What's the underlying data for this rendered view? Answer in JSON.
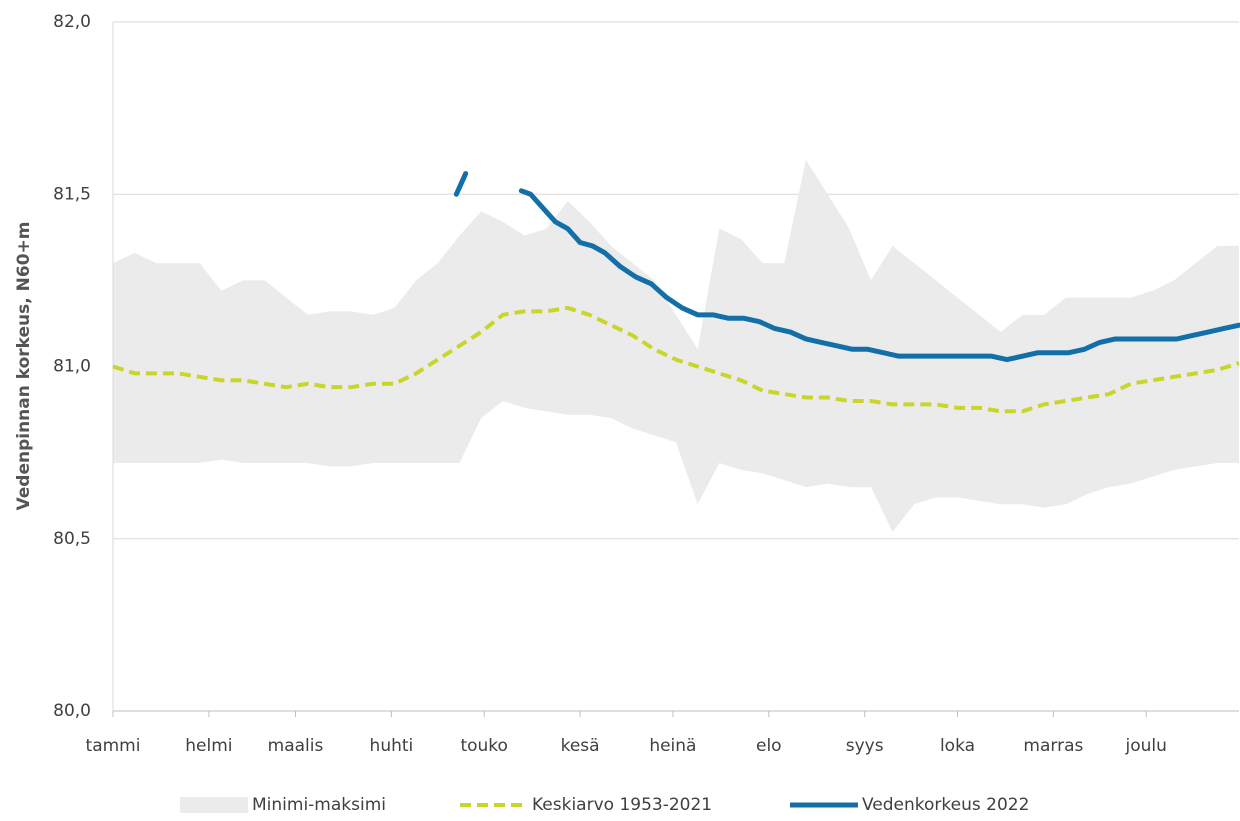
{
  "chart_data": {
    "type": "line",
    "y_label": "Vedenpinnan korkeus, N60+m",
    "x": [
      1,
      8,
      15,
      22,
      29,
      36,
      43,
      50,
      57,
      64,
      71,
      78,
      85,
      92,
      99,
      106,
      113,
      120,
      127,
      134,
      141,
      148,
      155,
      162,
      169,
      176,
      183,
      190,
      197,
      204,
      211,
      218,
      225,
      232,
      239,
      246,
      253,
      260,
      267,
      274,
      281,
      288,
      295,
      302,
      309,
      316,
      323,
      330,
      337,
      344,
      351,
      358,
      365
    ],
    "xlim": [
      1,
      365
    ],
    "xticks": [
      {
        "value": 1,
        "label": "tammi"
      },
      {
        "value": 32,
        "label": "helmi"
      },
      {
        "value": 60,
        "label": "maalis"
      },
      {
        "value": 91,
        "label": "huhti"
      },
      {
        "value": 121,
        "label": "touko"
      },
      {
        "value": 152,
        "label": "kesä"
      },
      {
        "value": 182,
        "label": "heinä"
      },
      {
        "value": 213,
        "label": "elo"
      },
      {
        "value": 244,
        "label": "syys"
      },
      {
        "value": 274,
        "label": "loka"
      },
      {
        "value": 305,
        "label": "marras"
      },
      {
        "value": 335,
        "label": "joulu"
      }
    ],
    "ylim": [
      80,
      82
    ],
    "yticks": [
      {
        "value": 80,
        "label": "80,0"
      },
      {
        "value": 80.5,
        "label": "80,5"
      },
      {
        "value": 81,
        "label": "81,0"
      },
      {
        "value": 81.5,
        "label": "81,5"
      },
      {
        "value": 82,
        "label": "82,0"
      }
    ],
    "grid": true,
    "legend": "bottom",
    "series": [
      {
        "name": "Minimi-maksimi",
        "color": "#ebebeb",
        "style": "band",
        "max": [
          81.3,
          81.33,
          81.3,
          81.3,
          81.3,
          81.22,
          81.25,
          81.25,
          81.2,
          81.15,
          81.16,
          81.16,
          81.15,
          81.17,
          81.25,
          81.3,
          81.38,
          81.45,
          81.42,
          81.38,
          81.4,
          81.48,
          81.42,
          81.35,
          81.3,
          81.25,
          81.15,
          81.05,
          81.4,
          81.37,
          81.3,
          81.3,
          81.6,
          81.5,
          81.4,
          81.25,
          81.35,
          81.3,
          81.25,
          81.2,
          81.15,
          81.1,
          81.15,
          81.15,
          81.2,
          81.2,
          81.2,
          81.2,
          81.22,
          81.25,
          81.3,
          81.35,
          81.35
        ],
        "min": [
          80.72,
          80.72,
          80.72,
          80.72,
          80.72,
          80.73,
          80.72,
          80.72,
          80.72,
          80.72,
          80.71,
          80.71,
          80.72,
          80.72,
          80.72,
          80.72,
          80.72,
          80.85,
          80.9,
          80.88,
          80.87,
          80.86,
          80.86,
          80.85,
          80.82,
          80.8,
          80.78,
          80.6,
          80.72,
          80.7,
          80.69,
          80.67,
          80.65,
          80.66,
          80.65,
          80.65,
          80.52,
          80.6,
          80.62,
          80.62,
          80.61,
          80.6,
          80.6,
          80.59,
          80.6,
          80.63,
          80.65,
          80.66,
          80.68,
          80.7,
          80.71,
          80.72,
          80.72
        ]
      },
      {
        "name": "Keskiarvo 1953-2021",
        "color": "#c9d52b",
        "style": "dashed",
        "values": [
          81.0,
          80.98,
          80.98,
          80.98,
          80.97,
          80.96,
          80.96,
          80.95,
          80.94,
          80.95,
          80.94,
          80.94,
          80.95,
          80.95,
          80.98,
          81.02,
          81.06,
          81.1,
          81.15,
          81.16,
          81.16,
          81.17,
          81.15,
          81.12,
          81.09,
          81.05,
          81.02,
          81.0,
          80.98,
          80.96,
          80.93,
          80.92,
          80.91,
          80.91,
          80.9,
          80.9,
          80.89,
          80.89,
          80.89,
          80.88,
          80.88,
          80.87,
          80.87,
          80.89,
          80.9,
          80.91,
          80.92,
          80.95,
          80.96,
          80.97,
          80.98,
          80.99,
          81.01
        ]
      },
      {
        "name": "Vedenkorkeus 2022",
        "color": "#136fa8",
        "style": "solid",
        "x": [
          112,
          115,
          116,
          133,
          136,
          140,
          144,
          148,
          152,
          156,
          160,
          165,
          170,
          175,
          180,
          185,
          190,
          195,
          200,
          205,
          210,
          215,
          220,
          225,
          230,
          235,
          240,
          245,
          250,
          255,
          260,
          265,
          270,
          275,
          280,
          285,
          290,
          295,
          300,
          305,
          310,
          315,
          320,
          325,
          330,
          335,
          340,
          345,
          350,
          355,
          360,
          365
        ],
        "values": [
          81.5,
          81.56,
          null,
          81.51,
          81.5,
          81.46,
          81.42,
          81.4,
          81.36,
          81.35,
          81.33,
          81.29,
          81.26,
          81.24,
          81.2,
          81.17,
          81.15,
          81.15,
          81.14,
          81.14,
          81.13,
          81.11,
          81.1,
          81.08,
          81.07,
          81.06,
          81.05,
          81.05,
          81.04,
          81.03,
          81.03,
          81.03,
          81.03,
          81.03,
          81.03,
          81.03,
          81.02,
          81.03,
          81.04,
          81.04,
          81.04,
          81.05,
          81.07,
          81.08,
          81.08,
          81.08,
          81.08,
          81.08,
          81.09,
          81.1,
          81.11,
          81.12
        ]
      }
    ]
  }
}
